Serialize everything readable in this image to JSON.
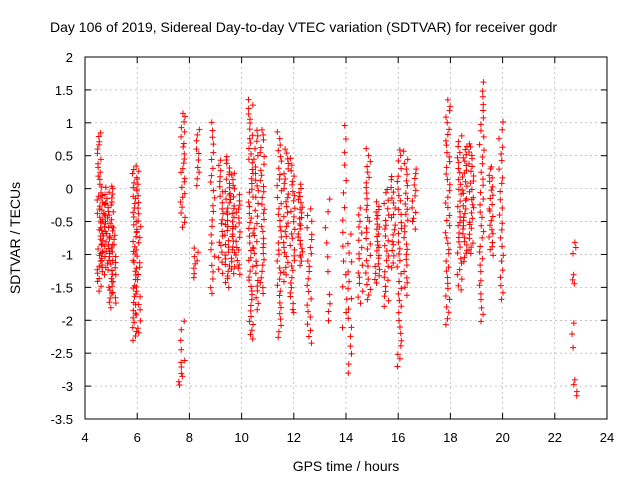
{
  "colors": {
    "series": "#ff0000",
    "axis": "#000000",
    "grid": "#a0a0a0"
  },
  "chart_data": {
    "type": "scatter",
    "title": "Day 106 of 2019, Sidereal Day-to-day VTEC variation (SDTVAR) for receiver godr",
    "xlabel": "GPS time / hours",
    "ylabel": "SDTVAR / TECUs",
    "xlim": [
      4,
      24
    ],
    "ylim": [
      -3.5,
      2
    ],
    "xticks": [
      "4",
      "6",
      "8",
      "10",
      "12",
      "14",
      "16",
      "18",
      "20",
      "22",
      "24"
    ],
    "yticks": [
      "2",
      "1.5",
      "1",
      "0.5",
      "0",
      "-0.5",
      "-1",
      "-1.5",
      "-2",
      "-2.5",
      "-3",
      "-3.5"
    ],
    "grid": true,
    "marker": "plus",
    "clusters": [
      {
        "x": 4.55,
        "ymin": -1.55,
        "ymax": 0.85,
        "n": 38
      },
      {
        "x": 4.7,
        "ymin": -1.3,
        "ymax": -0.1,
        "n": 24
      },
      {
        "x": 4.85,
        "ymin": -1.25,
        "ymax": 0.0,
        "n": 26
      },
      {
        "x": 5.0,
        "ymin": -1.8,
        "ymax": 0.05,
        "n": 30
      },
      {
        "x": 5.1,
        "ymin": -1.75,
        "ymax": -0.6,
        "n": 14
      },
      {
        "x": 5.9,
        "ymin": -2.3,
        "ymax": 0.35,
        "n": 42
      },
      {
        "x": 6.05,
        "ymin": -2.2,
        "ymax": 0.25,
        "n": 28
      },
      {
        "x": 7.65,
        "ymin": -3.0,
        "ymax": -2.65,
        "n": 6
      },
      {
        "x": 7.75,
        "ymin": -2.6,
        "ymax": -2.0,
        "n": 5
      },
      {
        "x": 7.75,
        "ymin": -0.6,
        "ymax": 1.15,
        "n": 24
      },
      {
        "x": 8.25,
        "ymin": -1.35,
        "ymax": -0.9,
        "n": 8
      },
      {
        "x": 8.35,
        "ymin": 0.05,
        "ymax": 0.9,
        "n": 10
      },
      {
        "x": 8.9,
        "ymin": -1.6,
        "ymax": 1.0,
        "n": 24
      },
      {
        "x": 9.2,
        "ymin": -1.3,
        "ymax": 0.45,
        "n": 22
      },
      {
        "x": 9.45,
        "ymin": -1.5,
        "ymax": 0.5,
        "n": 34
      },
      {
        "x": 9.65,
        "ymin": -1.3,
        "ymax": 0.25,
        "n": 26
      },
      {
        "x": 9.85,
        "ymin": -1.3,
        "ymax": -0.1,
        "n": 18
      },
      {
        "x": 10.35,
        "ymin": -2.3,
        "ymax": 1.35,
        "n": 50
      },
      {
        "x": 10.55,
        "ymin": -1.85,
        "ymax": 0.9,
        "n": 30
      },
      {
        "x": 10.8,
        "ymin": -1.6,
        "ymax": 0.9,
        "n": 30
      },
      {
        "x": 11.45,
        "ymin": -2.25,
        "ymax": 0.85,
        "n": 36
      },
      {
        "x": 11.7,
        "ymin": -1.4,
        "ymax": 0.6,
        "n": 28
      },
      {
        "x": 11.95,
        "ymin": -1.9,
        "ymax": 0.45,
        "n": 30
      },
      {
        "x": 12.25,
        "ymin": -1.15,
        "ymax": 0.05,
        "n": 24
      },
      {
        "x": 12.6,
        "ymin": -2.35,
        "ymax": -0.3,
        "n": 22
      },
      {
        "x": 13.3,
        "ymin": -1.25,
        "ymax": -0.15,
        "n": 6
      },
      {
        "x": 13.3,
        "ymin": -2.0,
        "ymax": -1.6,
        "n": 4
      },
      {
        "x": 13.95,
        "ymin": -2.1,
        "ymax": 0.95,
        "n": 16
      },
      {
        "x": 14.15,
        "ymin": -2.8,
        "ymax": -0.7,
        "n": 16
      },
      {
        "x": 14.55,
        "ymin": -1.75,
        "ymax": -0.3,
        "n": 16
      },
      {
        "x": 14.85,
        "ymin": -1.7,
        "ymax": 0.6,
        "n": 28
      },
      {
        "x": 15.2,
        "ymin": -1.45,
        "ymax": -0.2,
        "n": 24
      },
      {
        "x": 15.55,
        "ymin": -1.8,
        "ymax": 0.0,
        "n": 24
      },
      {
        "x": 15.8,
        "ymin": -1.2,
        "ymax": 0.2,
        "n": 18
      },
      {
        "x": 16.05,
        "ymin": -2.7,
        "ymax": 0.6,
        "n": 34
      },
      {
        "x": 16.3,
        "ymin": -1.6,
        "ymax": 0.55,
        "n": 26
      },
      {
        "x": 16.6,
        "ymin": -0.6,
        "ymax": 0.3,
        "n": 12
      },
      {
        "x": 17.9,
        "ymin": -2.05,
        "ymax": 1.35,
        "n": 40
      },
      {
        "x": 18.35,
        "ymin": -1.55,
        "ymax": 0.8,
        "n": 30
      },
      {
        "x": 18.55,
        "ymin": -1.1,
        "ymax": 0.65,
        "n": 30
      },
      {
        "x": 18.8,
        "ymin": -1.0,
        "ymax": 0.7,
        "n": 28
      },
      {
        "x": 19.2,
        "ymin": -2.0,
        "ymax": 1.6,
        "n": 36
      },
      {
        "x": 19.55,
        "ymin": -1.0,
        "ymax": 0.35,
        "n": 22
      },
      {
        "x": 19.95,
        "ymin": -1.7,
        "ymax": 1.0,
        "n": 24
      },
      {
        "x": 22.75,
        "ymin": -1.0,
        "ymax": -0.8,
        "n": 3
      },
      {
        "x": 22.75,
        "ymin": -1.45,
        "ymax": -1.3,
        "n": 3
      },
      {
        "x": 22.75,
        "ymin": -2.4,
        "ymax": -2.05,
        "n": 3
      },
      {
        "x": 22.8,
        "ymin": -3.15,
        "ymax": -2.9,
        "n": 4
      }
    ]
  }
}
